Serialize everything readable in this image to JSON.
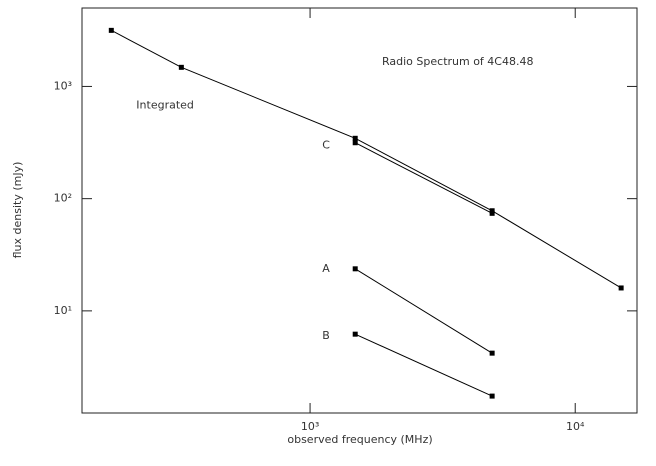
{
  "chart_data": {
    "type": "line",
    "title": "Radio Spectrum of 4C48.48",
    "xlabel": "observed frequency (MHz)",
    "ylabel": "flux density (mJy)",
    "xscale": "log",
    "yscale": "log",
    "color": "#000000",
    "xlim": [
      138,
      17100
    ],
    "ylim": [
      1.23,
      5000
    ],
    "xticks": [
      {
        "value": 1000,
        "label": "10³"
      },
      {
        "value": 10000,
        "label": "10⁴"
      }
    ],
    "yticks": [
      {
        "value": 10,
        "label": "10¹"
      },
      {
        "value": 100,
        "label": "10²"
      },
      {
        "value": 1000,
        "label": "10³"
      }
    ],
    "series": [
      {
        "name": "Integrated",
        "x": [
          178,
          327,
          1480,
          4860,
          14900
        ],
        "values": [
          3160,
          1480,
          345,
          78,
          16
        ]
      },
      {
        "name": "C",
        "x": [
          1480,
          4860
        ],
        "values": [
          315,
          74
        ]
      },
      {
        "name": "A",
        "x": [
          1480,
          4860
        ],
        "values": [
          23.7,
          4.2
        ]
      },
      {
        "name": "B",
        "x": [
          1480,
          4860
        ],
        "values": [
          6.2,
          1.74
        ]
      }
    ]
  }
}
